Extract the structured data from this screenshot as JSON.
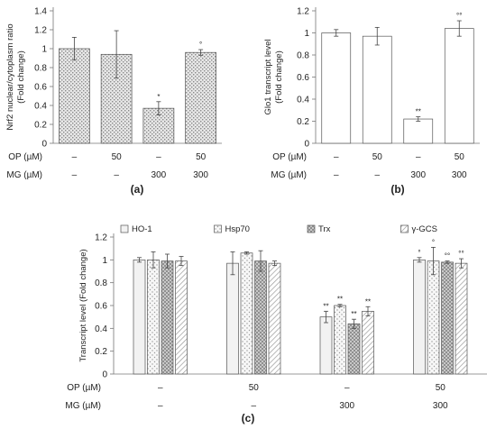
{
  "chart_data": [
    {
      "type": "bar",
      "panel_label": "(a)",
      "ylabel": [
        "Nrf2 nuclear/cytoplasm ratio",
        "(Fold change)"
      ],
      "ylim": [
        0,
        1.4
      ],
      "yticks": [
        "0",
        "0.2",
        "0.4",
        "0.6",
        "0.8",
        "1",
        "1.2",
        "1.4"
      ],
      "bar_style": "dotted",
      "categories": [
        "control",
        "OP50",
        "MG300",
        "OP50+MG300"
      ],
      "values": [
        1.0,
        0.94,
        0.37,
        0.96
      ],
      "errors": [
        0.12,
        0.25,
        0.07,
        0.03
      ],
      "annotations": [
        "",
        "",
        "*",
        "°"
      ],
      "conditions": {
        "OP (µM)": [
          "–",
          "50",
          "–",
          "50"
        ],
        "MG (µM)": [
          "–",
          "–",
          "300",
          "300"
        ]
      }
    },
    {
      "type": "bar",
      "panel_label": "(b)",
      "ylabel": [
        "Glo1 transcript level",
        "(Fold change)"
      ],
      "ylim": [
        0,
        1.2
      ],
      "yticks": [
        "0",
        "0.2",
        "0.4",
        "0.6",
        "0.8",
        "1",
        "1.2"
      ],
      "bar_style": "white",
      "categories": [
        "control",
        "OP50",
        "MG300",
        "OP50+MG300"
      ],
      "values": [
        1.0,
        0.97,
        0.22,
        1.04
      ],
      "errors": [
        0.03,
        0.08,
        0.02,
        0.07
      ],
      "annotations": [
        "",
        "",
        "**",
        "°°"
      ],
      "conditions": {
        "OP (µM)": [
          "–",
          "50",
          "–",
          "50"
        ],
        "MG (µM)": [
          "–",
          "–",
          "300",
          "300"
        ]
      }
    },
    {
      "type": "bar",
      "panel_label": "(c)",
      "ylabel": [
        "Transcript level (Fold change)"
      ],
      "ylim": [
        0,
        1.2
      ],
      "yticks": [
        "0",
        "0.2",
        "0.4",
        "0.6",
        "0.8",
        "1",
        "1.2"
      ],
      "legend_placement": "top",
      "categories": [
        "control",
        "OP50",
        "MG300",
        "OP50+MG300"
      ],
      "series": [
        {
          "name": "HO-1",
          "style": "plain",
          "values": [
            1.0,
            0.97,
            0.5,
            1.0
          ],
          "errors": [
            0.02,
            0.1,
            0.05,
            0.02
          ],
          "annotations": [
            "",
            "",
            "**",
            "°"
          ]
        },
        {
          "name": "Hsp70",
          "style": "dots",
          "values": [
            1.0,
            1.06,
            0.6,
            0.99
          ],
          "errors": [
            0.07,
            0.01,
            0.01,
            0.12
          ],
          "annotations": [
            "",
            "",
            "**",
            "°"
          ]
        },
        {
          "name": "Trx",
          "style": "checker",
          "values": [
            0.99,
            0.99,
            0.44,
            0.98
          ],
          "errors": [
            0.06,
            0.09,
            0.04,
            0.01
          ],
          "annotations": [
            "",
            "",
            "**",
            "°°"
          ]
        },
        {
          "name": "γ-GCS",
          "style": "hatch",
          "values": [
            0.99,
            0.97,
            0.55,
            0.97
          ],
          "errors": [
            0.04,
            0.02,
            0.04,
            0.04
          ],
          "annotations": [
            "",
            "",
            "**",
            "°°"
          ]
        }
      ],
      "conditions": {
        "OP (µM)": [
          "–",
          "50",
          "–",
          "50"
        ],
        "MG (µM)": [
          "–",
          "–",
          "300",
          "300"
        ]
      }
    }
  ]
}
